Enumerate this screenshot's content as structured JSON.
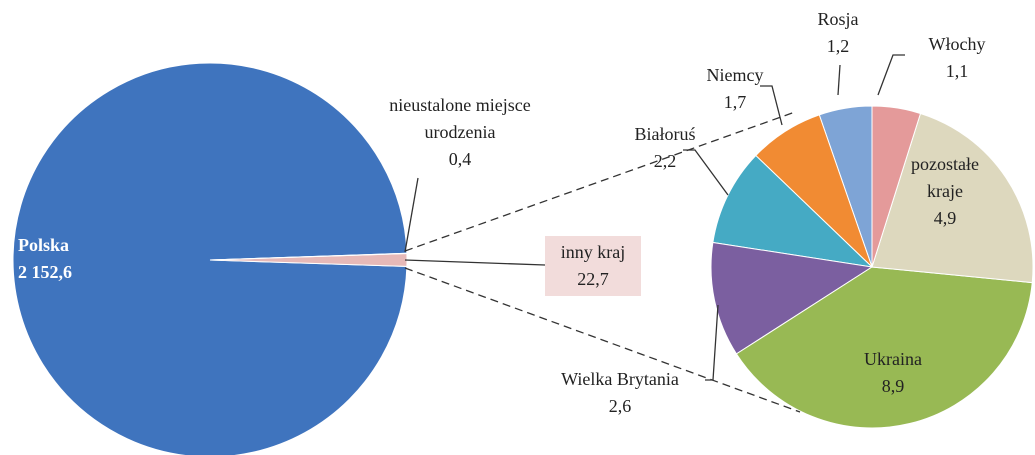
{
  "chart_data": [
    {
      "type": "pie",
      "categories": [
        "nieustalone miejsce urodzenia",
        "inny kraj",
        "Polska"
      ],
      "values": [
        0.4,
        22.7,
        2152.6
      ],
      "value_labels": [
        "0,4",
        "22,7",
        "2 152,6"
      ],
      "colors": [
        "#c9b8e0",
        "#e6b9b8",
        "#3f74be"
      ]
    },
    {
      "type": "pie",
      "categories": [
        "Włochy",
        "pozostałe kraje",
        "Ukraina",
        "Wielka Brytania",
        "Białoruś",
        "Niemcy",
        "Rosja"
      ],
      "values": [
        1.1,
        4.9,
        8.9,
        2.6,
        2.2,
        1.7,
        1.2
      ],
      "value_labels": [
        "1,1",
        "4,9",
        "8,9",
        "2,6",
        "2,2",
        "1,7",
        "1,2"
      ],
      "colors": [
        "#e49a9a",
        "#ddd8be",
        "#98b954",
        "#7b5fa0",
        "#45aac4",
        "#f18b33",
        "#7ea4d6"
      ]
    }
  ]
}
